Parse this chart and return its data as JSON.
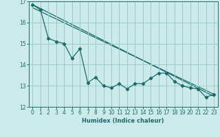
{
  "xlabel": "Humidex (Indice chaleur)",
  "bg_color": "#cceaea",
  "grid_color": "#99cccc",
  "line_color": "#1a6b6b",
  "xlim": [
    -0.5,
    23.5
  ],
  "ylim": [
    12,
    17
  ],
  "xticks": [
    0,
    1,
    2,
    3,
    4,
    5,
    6,
    7,
    8,
    9,
    10,
    11,
    12,
    13,
    14,
    15,
    16,
    17,
    18,
    19,
    20,
    21,
    22,
    23
  ],
  "yticks": [
    12,
    13,
    14,
    15,
    16,
    17
  ],
  "series1_x": [
    0,
    1,
    2,
    3,
    4,
    5,
    6,
    7,
    8,
    9,
    10,
    11,
    12,
    13,
    14,
    15,
    16,
    17,
    18,
    19,
    20,
    21,
    22,
    23
  ],
  "series1_y": [
    16.85,
    16.6,
    15.25,
    15.1,
    15.0,
    14.3,
    14.75,
    13.15,
    13.4,
    13.0,
    12.9,
    13.1,
    12.85,
    13.1,
    13.1,
    13.35,
    13.6,
    13.6,
    13.2,
    13.0,
    12.9,
    12.85,
    12.45,
    12.6
  ],
  "line1_x": [
    0,
    23
  ],
  "line1_y": [
    16.85,
    12.5
  ],
  "line2_x": [
    0,
    23
  ],
  "line2_y": [
    16.7,
    12.6
  ]
}
